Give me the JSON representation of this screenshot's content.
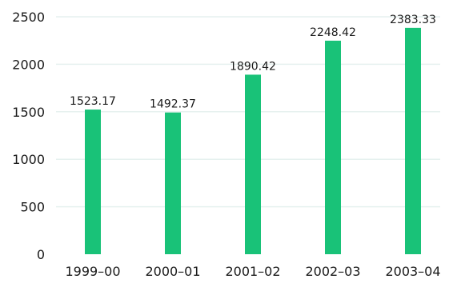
{
  "chart_data": {
    "type": "bar",
    "categories": [
      "1999–00",
      "2000–01",
      "2001–02",
      "2002–03",
      "2003–04"
    ],
    "values": [
      1523.17,
      1492.37,
      1890.42,
      2248.42,
      2383.33
    ],
    "value_labels": [
      "1523.17",
      "1492.37",
      "1890.42",
      "2248.42",
      "2383.33"
    ],
    "title": "",
    "xlabel": "",
    "ylabel": "",
    "ylim": [
      0,
      2500
    ],
    "yticks": [
      0,
      500,
      1000,
      1500,
      2000,
      2500
    ],
    "grid": true,
    "legend": "none",
    "bar_color": "#19c278",
    "grid_color": "#e6f1ef"
  }
}
